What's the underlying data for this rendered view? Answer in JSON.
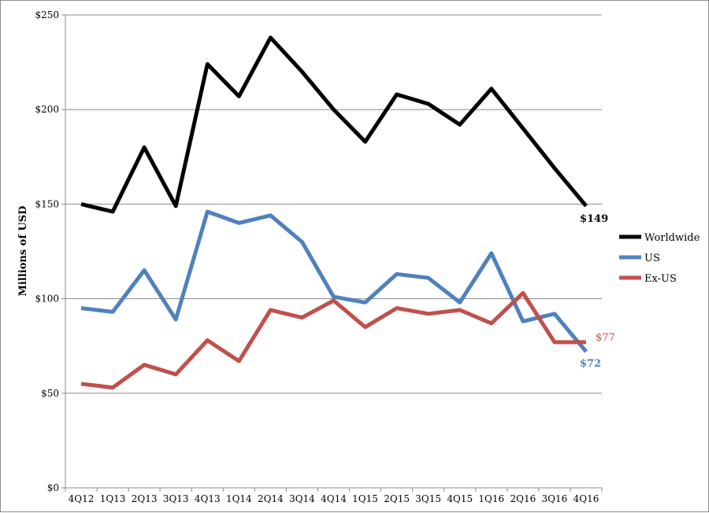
{
  "chart_data": {
    "type": "line",
    "title": "",
    "xlabel": "",
    "ylabel": "Millions of USD",
    "ylim": [
      0,
      250
    ],
    "y_ticks": [
      "$0",
      "$50",
      "$100",
      "$150",
      "$200",
      "$250"
    ],
    "y_tick_values": [
      0,
      50,
      100,
      150,
      200,
      250
    ],
    "grid": true,
    "legend_position": "right",
    "categories": [
      "4Q12",
      "1Q13",
      "2Q13",
      "3Q13",
      "4Q13",
      "1Q14",
      "2Q14",
      "3Q14",
      "4Q14",
      "1Q15",
      "2Q15",
      "3Q15",
      "4Q15",
      "1Q16",
      "2Q16",
      "3Q16",
      "4Q16"
    ],
    "series": [
      {
        "name": "Worldwide",
        "color": "#000000",
        "values": [
          150,
          146,
          180,
          149,
          224,
          207,
          238,
          220,
          200,
          183,
          208,
          203,
          192,
          211,
          190,
          169,
          149
        ],
        "end_label": "$149",
        "end_label_bold": true
      },
      {
        "name": "US",
        "color": "#4f81bd",
        "values": [
          95,
          93,
          115,
          89,
          146,
          140,
          144,
          130,
          101,
          98,
          113,
          111,
          98,
          124,
          88,
          92,
          72
        ],
        "end_label": "$72",
        "end_label_bold": true
      },
      {
        "name": "Ex-US",
        "color": "#c0504d",
        "values": [
          55,
          53,
          65,
          60,
          78,
          67,
          94,
          90,
          99,
          85,
          95,
          92,
          94,
          87,
          103,
          77,
          77
        ],
        "end_label": "$77",
        "end_label_bold": false
      }
    ]
  }
}
